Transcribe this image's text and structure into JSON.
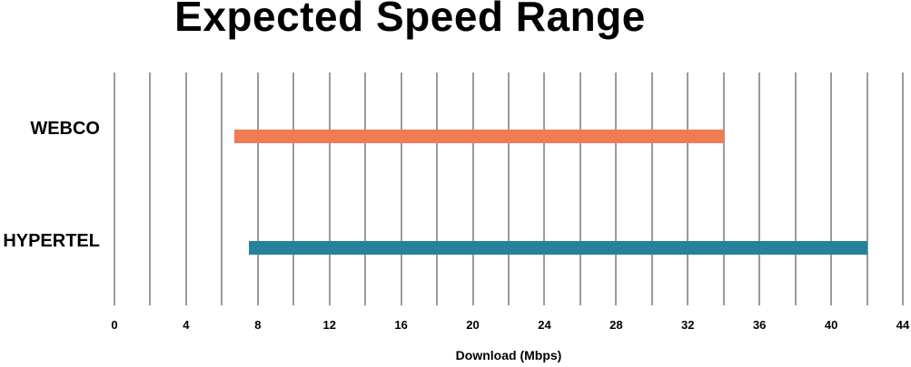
{
  "chart_data": {
    "type": "bar",
    "orientation": "horizontal-range",
    "title": "Expected Speed Range",
    "xlabel": "Download (Mbps)",
    "categories": [
      "WEBCO",
      "HYPERTEL"
    ],
    "bars": [
      {
        "category": "WEBCO",
        "min": 6.7,
        "max": 34,
        "color": "#f07b54"
      },
      {
        "category": "HYPERTEL",
        "min": 7.5,
        "max": 42,
        "color": "#26829a"
      }
    ],
    "xlim": [
      0,
      44
    ],
    "x_ticks": [
      0,
      4,
      8,
      12,
      16,
      20,
      24,
      28,
      32,
      36,
      40,
      44
    ],
    "grid_step": 2,
    "grid_on": true,
    "grid_color": "#9d9a94",
    "legend_position": "none",
    "row_center_fracs": [
      0.274,
      0.753
    ],
    "text_color": "#000000",
    "background_color": "#ffffff"
  }
}
